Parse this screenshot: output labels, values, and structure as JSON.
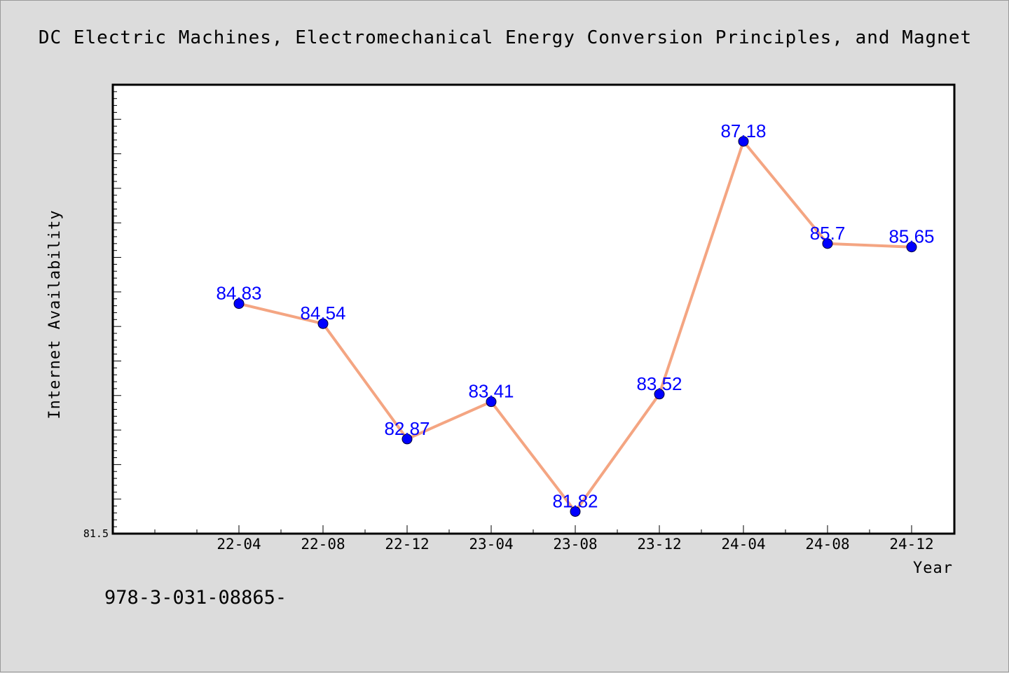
{
  "chart_data": {
    "type": "line",
    "title": "DC Electric Machines, Electromechanical Energy Conversion Principles, and Magnet",
    "xlabel": "Year",
    "ylabel": "Internet Availability",
    "categories": [
      "22-04",
      "22-08",
      "22-12",
      "23-04",
      "23-08",
      "23-12",
      "24-04",
      "24-08",
      "24-12"
    ],
    "values": [
      84.83,
      84.54,
      82.87,
      83.41,
      81.82,
      83.52,
      87.18,
      85.7,
      85.65
    ],
    "data_labels": [
      "84.83",
      "84.54",
      "82.87",
      "83.41",
      "81.82",
      "83.52",
      "87.18",
      "85.7",
      "85.65"
    ],
    "ylim": [
      81.5,
      88.0
    ],
    "ytick_labels": [
      "81.5"
    ],
    "grid": false,
    "legend": "none",
    "line_color": "#f4a582",
    "marker_color": "#0000ff",
    "label_color": "#0000ff"
  },
  "footnote": "978-3-031-08865-"
}
